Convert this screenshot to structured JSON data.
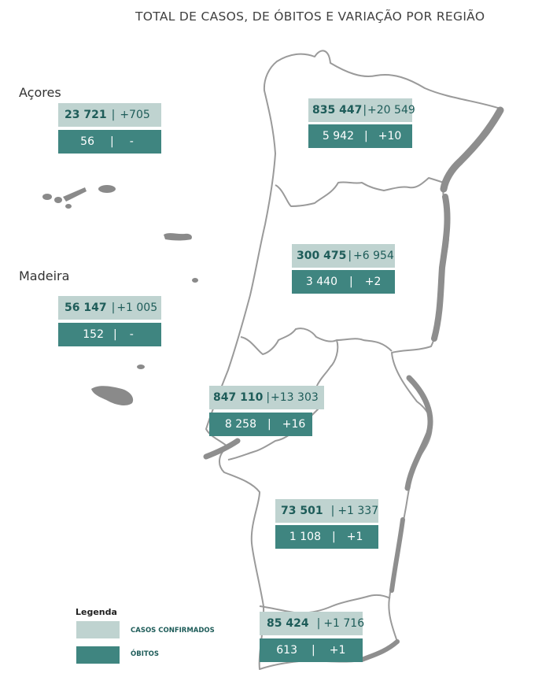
{
  "title": "TOTAL DE CASOS, DE ÓBITOS E VARIAÇÃO POR REGIÃO",
  "colors": {
    "cases_bg": "#bfd3d0",
    "deaths_bg": "#3f8580",
    "map_border": "#9a9a9a",
    "text_dark": "#1e5c59"
  },
  "islands": {
    "acores_label": "Açores",
    "madeira_label": "Madeira"
  },
  "regions": {
    "acores": {
      "cases": "23 721",
      "cases_delta": "+705",
      "deaths": "56",
      "deaths_delta": "-"
    },
    "madeira": {
      "cases": "56 147",
      "cases_delta": "+1 005",
      "deaths": "152",
      "deaths_delta": "-"
    },
    "norte": {
      "cases": "835 447",
      "cases_delta": "+20 549",
      "deaths": "5 942",
      "deaths_delta": "+10"
    },
    "centro": {
      "cases": "300 475",
      "cases_delta": "+6 954",
      "deaths": "3 440",
      "deaths_delta": "+2"
    },
    "lisboa": {
      "cases": "847 110",
      "cases_delta": "+13 303",
      "deaths": "8 258",
      "deaths_delta": "+16"
    },
    "alentejo": {
      "cases": "73 501",
      "cases_delta": "+1 337",
      "deaths": "1 108",
      "deaths_delta": "+1"
    },
    "algarve": {
      "cases": "85 424",
      "cases_delta": "+1 716",
      "deaths": "613",
      "deaths_delta": "+1"
    }
  },
  "legend": {
    "title": "Legenda",
    "cases_label": "CASOS CONFIRMADOS",
    "deaths_label": "ÓBITOS"
  }
}
